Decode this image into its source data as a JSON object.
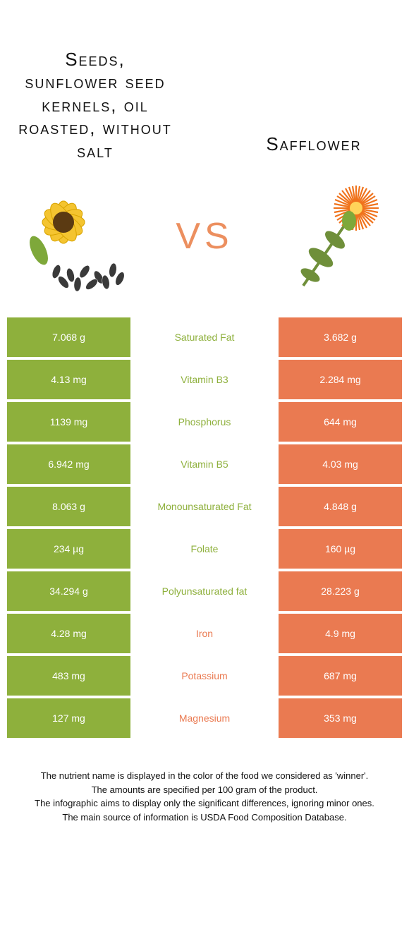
{
  "colors": {
    "green": "#8eb03c",
    "orange": "#ea7a51",
    "vs": "#ec8f5f",
    "white": "#ffffff"
  },
  "header": {
    "left_title": "Seeds, sunflower seed kernels, oil roasted, without salt",
    "right_title": "Safflower",
    "vs_label": "VS"
  },
  "illustrations": {
    "left": "sunflower-with-seeds",
    "right": "safflower-flower"
  },
  "table": {
    "left_bg": "#8eb03c",
    "right_bg": "#ea7a51",
    "winner_colors": {
      "left": "#8eb03c",
      "right": "#ea7a51"
    },
    "rows": [
      {
        "left": "7.068 g",
        "label": "Saturated Fat",
        "right": "3.682 g",
        "winner": "left"
      },
      {
        "left": "4.13 mg",
        "label": "Vitamin B3",
        "right": "2.284 mg",
        "winner": "left"
      },
      {
        "left": "1139 mg",
        "label": "Phosphorus",
        "right": "644 mg",
        "winner": "left"
      },
      {
        "left": "6.942 mg",
        "label": "Vitamin B5",
        "right": "4.03 mg",
        "winner": "left"
      },
      {
        "left": "8.063 g",
        "label": "Monounsaturated Fat",
        "right": "4.848 g",
        "winner": "left"
      },
      {
        "left": "234 µg",
        "label": "Folate",
        "right": "160 µg",
        "winner": "left"
      },
      {
        "left": "34.294 g",
        "label": "Polyunsaturated fat",
        "right": "28.223 g",
        "winner": "left"
      },
      {
        "left": "4.28 mg",
        "label": "Iron",
        "right": "4.9 mg",
        "winner": "right"
      },
      {
        "left": "483 mg",
        "label": "Potassium",
        "right": "687 mg",
        "winner": "right"
      },
      {
        "left": "127 mg",
        "label": "Magnesium",
        "right": "353 mg",
        "winner": "right"
      }
    ]
  },
  "footnotes": [
    "The nutrient name is displayed in the color of the food we considered as 'winner'.",
    "The amounts are specified per 100 gram of the product.",
    "The infographic aims to display only the significant differences, ignoring minor ones.",
    "The main source of information is USDA Food Composition Database."
  ]
}
